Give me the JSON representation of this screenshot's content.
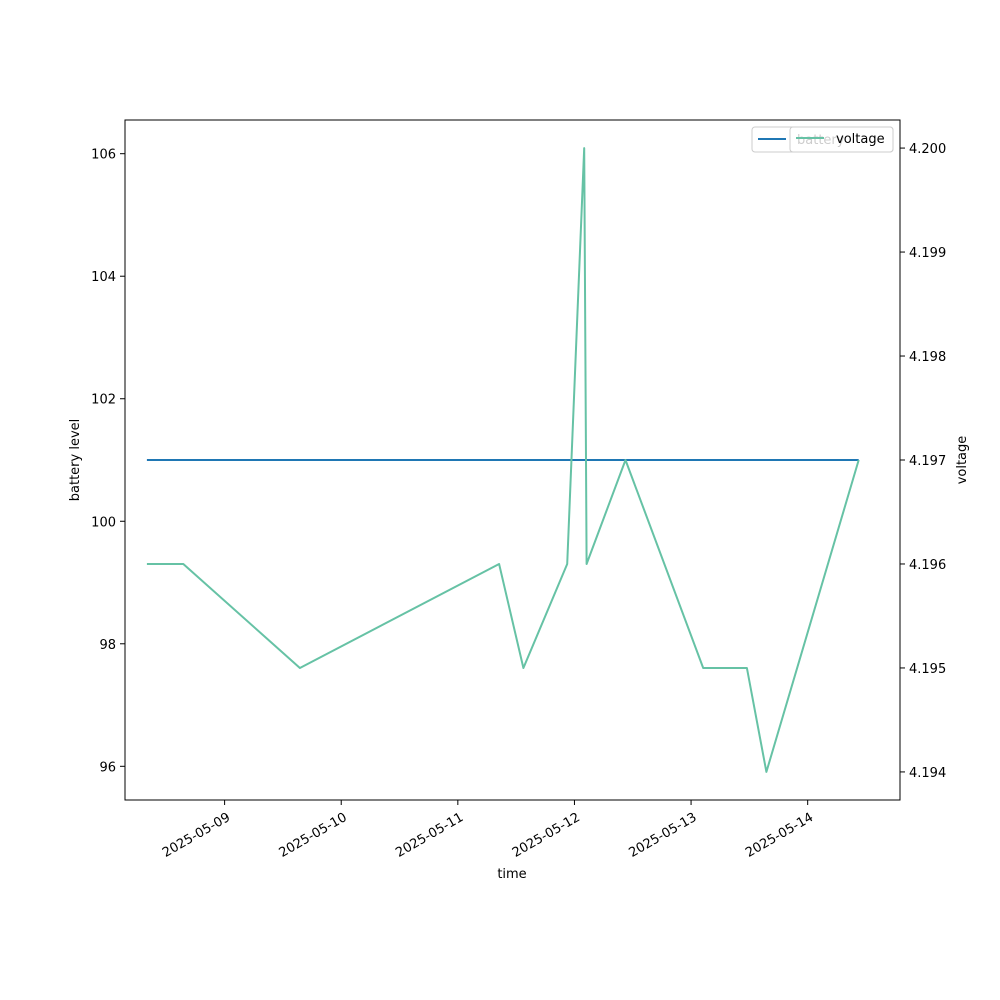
{
  "chart_data": {
    "type": "line",
    "xlabel": "time",
    "ylabel_left": "battery level",
    "ylabel_right": "voltage",
    "x_ticks": [
      "2025-05-09",
      "2025-05-10",
      "2025-05-11",
      "2025-05-12",
      "2025-05-13",
      "2025-05-14"
    ],
    "x_range": [
      "2025-05-08 03:30",
      "2025-05-14 19:00"
    ],
    "y_left_ticks": [
      96,
      98,
      100,
      102,
      104,
      106
    ],
    "y_left_range": [
      95.45,
      106.55
    ],
    "y_right_ticks": [
      "4.194",
      "4.195",
      "4.196",
      "4.197",
      "4.198",
      "4.199",
      "4.200"
    ],
    "y_right_range": [
      4.19373,
      4.20027
    ],
    "series": [
      {
        "name": "battery",
        "axis": "left",
        "color": "#1f77b4",
        "points": [
          [
            "2025-05-08 08:00",
            101
          ],
          [
            "2025-05-14 10:30",
            101
          ]
        ]
      },
      {
        "name": "voltage",
        "axis": "right",
        "color": "#66c2a5",
        "points": [
          [
            "2025-05-08 08:00",
            4.196
          ],
          [
            "2025-05-08 15:30",
            4.196
          ],
          [
            "2025-05-09 15:30",
            4.195
          ],
          [
            "2025-05-11 08:30",
            4.196
          ],
          [
            "2025-05-11 13:30",
            4.195
          ],
          [
            "2025-05-11 22:30",
            4.196
          ],
          [
            "2025-05-12 02:00",
            4.2
          ],
          [
            "2025-05-12 02:30",
            4.196
          ],
          [
            "2025-05-12 10:30",
            4.197
          ],
          [
            "2025-05-13 02:30",
            4.195
          ],
          [
            "2025-05-13 11:30",
            4.195
          ],
          [
            "2025-05-13 15:30",
            4.194
          ],
          [
            "2025-05-14 10:30",
            4.197
          ]
        ]
      }
    ],
    "legends": [
      {
        "entries": [
          "battery"
        ],
        "position": "top-right"
      },
      {
        "entries": [
          "voltage"
        ],
        "position": "top-right"
      }
    ],
    "grid": false
  }
}
